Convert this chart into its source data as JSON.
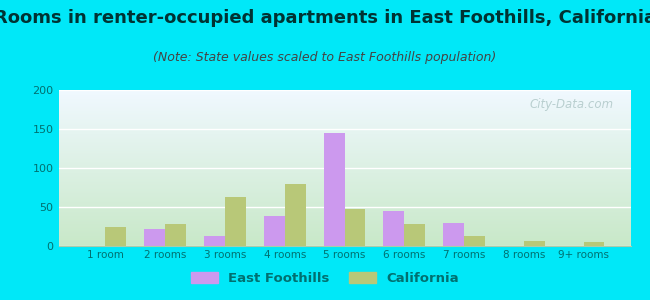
{
  "title": "Rooms in renter-occupied apartments in East Foothills, California",
  "subtitle": "(Note: State values scaled to East Foothills population)",
  "categories": [
    "1 room",
    "2 rooms",
    "3 rooms",
    "4 rooms",
    "5 rooms",
    "6 rooms",
    "7 rooms",
    "8 rooms",
    "9+ rooms"
  ],
  "east_foothills": [
    0,
    22,
    13,
    38,
    145,
    45,
    30,
    0,
    0
  ],
  "california": [
    24,
    28,
    63,
    80,
    47,
    28,
    13,
    7,
    5
  ],
  "ef_color": "#cc99ee",
  "ca_color": "#b8c878",
  "background_color": "#00e8f8",
  "ylim": [
    0,
    200
  ],
  "yticks": [
    0,
    50,
    100,
    150,
    200
  ],
  "title_fontsize": 13,
  "subtitle_fontsize": 9,
  "bar_width": 0.35,
  "legend_ef": "East Foothills",
  "legend_ca": "California",
  "watermark": "City-Data.com",
  "grad_top": "#c8e8c8",
  "grad_bot": "#f0f8ff",
  "tick_color": "#007070",
  "label_color": "#007070"
}
